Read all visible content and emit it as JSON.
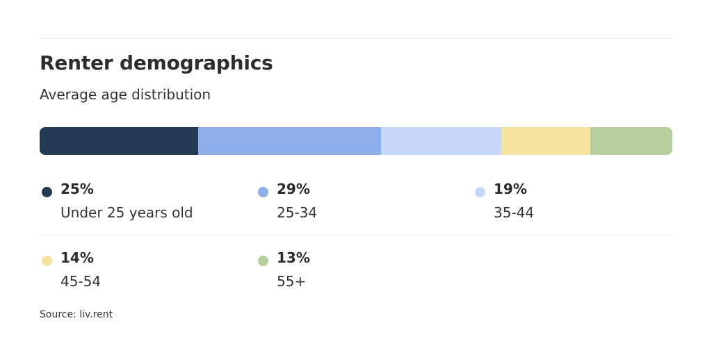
{
  "title": "Renter demographics",
  "subtitle": "Average age distribution",
  "source": "Source: liv.rent",
  "chart_data": {
    "type": "bar",
    "orientation": "horizontal-stacked-100",
    "title": "Renter demographics",
    "subtitle": "Average age distribution",
    "categories": [
      "Under 25 years old",
      "25-34",
      "35-44",
      "45-54",
      "55+"
    ],
    "values": [
      25,
      29,
      19,
      14,
      13
    ],
    "value_labels": [
      "25%",
      "29%",
      "19%",
      "14%",
      "13%"
    ],
    "colors": [
      "#223a52",
      "#8daeea",
      "#c6d7fb",
      "#f6e3a0",
      "#b7ce9f"
    ],
    "unit": "%",
    "legend_position": "bottom"
  }
}
